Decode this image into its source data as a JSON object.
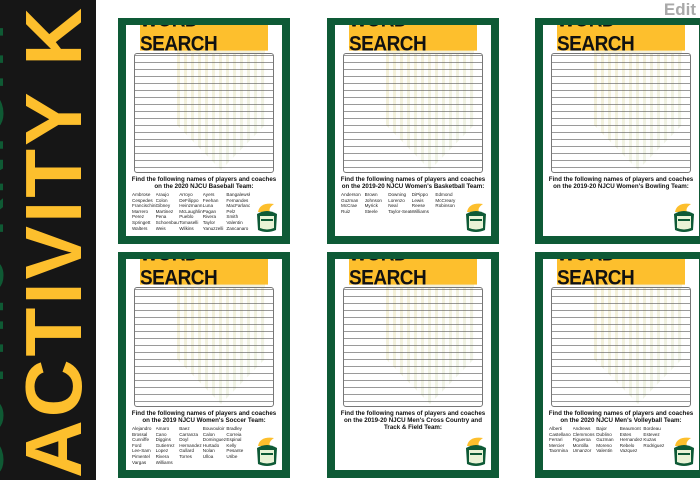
{
  "banner": {
    "subtitle": "GOTHIC KNIGHT",
    "title": "ACTIVITY KIT"
  },
  "edit_label": "Edit",
  "colors": {
    "green": "#0e5a36",
    "gold": "#fdbf2d",
    "black": "#161616"
  },
  "cards": [
    {
      "title": "WORD SEARCH",
      "caption": "Find the following names of players and coaches on the 2020 NJCU Baseball Team:",
      "names": [
        "Ambrose",
        "Araujo",
        "Arroyo",
        "Ayers",
        "Bangalewski",
        "Cespedes",
        "Colon",
        "DeFilippo",
        "Feehan",
        "Fernandes",
        "Francischini",
        "Gibney",
        "Heinzmann",
        "Luna",
        "MacFarland",
        "Marrero",
        "Martinez",
        "McLaughlin",
        "Pagan",
        "Pelz",
        "Perez",
        "Pena",
        "Pueblo",
        "Rivera",
        "Smith",
        "Springett",
        "Schoenbaum",
        "Tomaselli",
        "Taylor",
        "Valentin",
        "Walters",
        "Weis",
        "Wilkins",
        "Yanuzzelli",
        "Zancanaro"
      ]
    },
    {
      "title": "WORD SEARCH",
      "caption": "Find the following names of players and coaches on the 2019-20 NJCU Women's Basketball Team:",
      "names": [
        "Anderson",
        "Brown",
        "Downing",
        "DiPippo",
        "Edmond",
        "Guzman",
        "Johnson",
        "Lorenzo",
        "Lewis",
        "McCreary",
        "McCrae",
        "Myrick",
        "Neal",
        "Reese",
        "Robinson",
        "Ruiz",
        "Steele",
        "Taylor-Seaton",
        "Williams"
      ]
    },
    {
      "title": "WORD SEARCH",
      "caption": "Find the following names of players and coaches on the 2019-20 NJCU Women's Bowling Team:",
      "names": []
    },
    {
      "title": "WORD SEARCH",
      "caption": "Find the following names of players and coaches on the 2019 NJCU Women's Soccer Team:",
      "names": [
        "Alejandro",
        "Amaro",
        "Baez",
        "Bouvouloir",
        "Bradley",
        "Brossal",
        "Cano",
        "Carranza",
        "Calon",
        "Correia",
        "Cunniffe",
        "Diggins",
        "Doyl",
        "Dominguez",
        "Espinal",
        "Ford",
        "Gutierrez",
        "Hernandez",
        "Hurtado",
        "Kelly",
        "Lee-Sam",
        "Lopez",
        "Gullard",
        "Nolan",
        "Pesante",
        "Pimentel",
        "Rivera",
        "Torres",
        "Ulloa",
        "Uribe",
        "Vargas",
        "Williams"
      ]
    },
    {
      "title": "WORD SEARCH",
      "caption": "Find the following names of players and coaches on the 2019-20 NJCU Men's Cross Country and Track & Field Team:",
      "names": []
    },
    {
      "title": "WORD SEARCH",
      "caption": "Find the following names of players and coaches on the 2020 NJCU Men's Volleyball Team:",
      "names": [
        "Alberti",
        "Andrews",
        "Bajor",
        "Beaumont",
        "Bordeau",
        "Castellano",
        "Clemmons",
        "Dublino",
        "Estes",
        "Estevez",
        "Ferrari",
        "Figueroa",
        "Guzman",
        "Hernandez",
        "Kuzas",
        "Mercier",
        "Montilla",
        "Moreno",
        "Rebelo",
        "Rodriguez",
        "Taormina",
        "Umanzor",
        "Valentin",
        "Vazquez"
      ]
    }
  ]
}
